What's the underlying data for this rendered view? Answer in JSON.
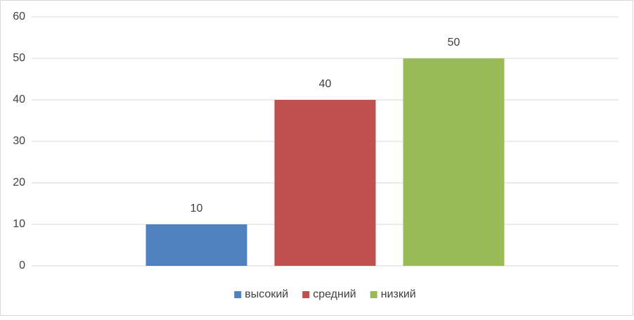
{
  "chart_data": {
    "type": "bar",
    "categories": [
      null
    ],
    "series": [
      {
        "name": "высокий",
        "color": "#4f81bd",
        "values": [
          10
        ]
      },
      {
        "name": "средний",
        "color": "#c0504d",
        "values": [
          40
        ]
      },
      {
        "name": "низкий",
        "color": "#9bbb59",
        "values": [
          50
        ]
      }
    ],
    "ylim": [
      0,
      60
    ],
    "yticks": [
      0,
      10,
      20,
      30,
      40,
      50,
      60
    ],
    "grid": true,
    "legend": "bottom"
  }
}
